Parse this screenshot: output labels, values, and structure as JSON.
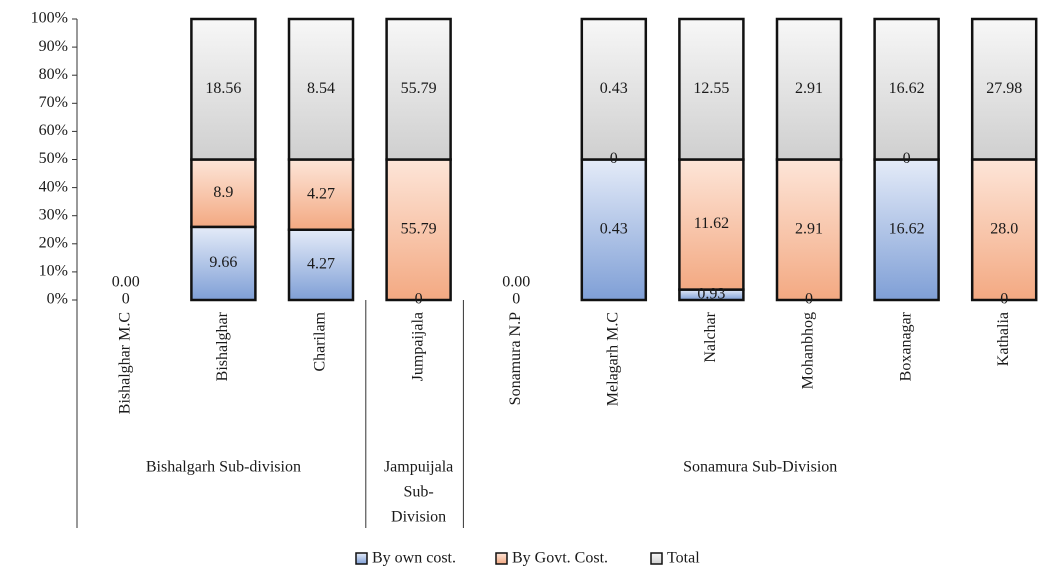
{
  "chart_data": {
    "type": "bar",
    "stacked": true,
    "percent_stacked": true,
    "y_ticks": [
      "0%",
      "10%",
      "20%",
      "30%",
      "40%",
      "50%",
      "60%",
      "70%",
      "80%",
      "90%",
      "100%"
    ],
    "ylim": [
      0,
      100
    ],
    "categories": [
      "Bishalghar M.C",
      "Bishalghar",
      "Charilam",
      "Jumpaijala",
      "Sonamura N.P",
      "Melagarh M.C",
      "Nalchar",
      "Mohanbhog",
      "Boxanagar",
      "Kathalia"
    ],
    "groups": [
      {
        "label": "Bishalgarh Sub-division",
        "categories": [
          "Bishalghar M.C",
          "Bishalghar",
          "Charilam"
        ]
      },
      {
        "label": "Jampuijala Sub-Division",
        "label_lines": [
          "Jampuijala",
          "Sub-",
          "Division"
        ],
        "categories": [
          "Jumpaijala"
        ]
      },
      {
        "label": "Sonamura Sub-Division",
        "categories": [
          "Sonamura N.P",
          "Melagarh M.C",
          "Nalchar",
          "Mohanbhog",
          "Boxanagar",
          "Kathalia"
        ]
      }
    ],
    "series": [
      {
        "name": "By own cost.",
        "values": [
          0,
          9.66,
          4.27,
          0,
          0,
          0.43,
          0.93,
          0,
          16.62,
          0
        ],
        "labels": [
          "0",
          "9.66",
          "4.27",
          "0",
          "0",
          "0.43",
          "0.93",
          "0",
          "16.62",
          "0"
        ],
        "color": "#7f9fd6"
      },
      {
        "name": "By Govt. Cost.",
        "values": [
          0,
          8.9,
          4.27,
          55.79,
          0,
          0,
          11.62,
          2.91,
          0,
          28.0
        ],
        "labels": [
          "",
          "8.9",
          "4.27",
          "55.79",
          "",
          "0",
          "11.62",
          "2.91",
          "0",
          "28.0"
        ],
        "color": "#f3a982"
      },
      {
        "name": "Total",
        "values": [
          0,
          18.56,
          8.54,
          55.79,
          0,
          0.43,
          12.55,
          2.91,
          16.62,
          27.98
        ],
        "labels": [
          "0.00",
          "18.56",
          "8.54",
          "55.79",
          "0.00",
          "0.43",
          "12.55",
          "2.91",
          "16.62",
          "27.98"
        ],
        "color": "#cfcfcf"
      }
    ],
    "legend_position": "bottom",
    "grid": false
  }
}
